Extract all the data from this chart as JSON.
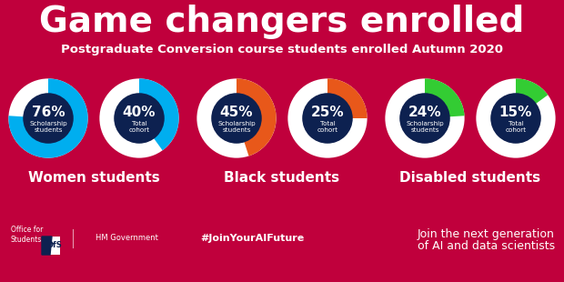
{
  "background_color": "#C0003C",
  "title": "Game changers enrolled",
  "subtitle": "Postgraduate Conversion course students enrolled Autumn 2020",
  "title_color": "#FFFFFF",
  "subtitle_color": "#FFFFFF",
  "donut_center_color": "#0D2150",
  "categories": [
    {
      "label": "Women students",
      "scholarship_pct": 76,
      "total_pct": 40,
      "color": "#00AEEF"
    },
    {
      "label": "Black students",
      "scholarship_pct": 45,
      "total_pct": 25,
      "color": "#E8581A"
    },
    {
      "label": "Disabled students",
      "scholarship_pct": 24,
      "total_pct": 15,
      "color": "#33CC33"
    }
  ],
  "label_scholarship": "Scholarship\nstudents",
  "label_total": "Total\ncohort",
  "footer_hashtag": "#JoinYourAIFuture",
  "footer_right_line1": "Join the next generation",
  "footer_right_line2": "of AI and data scientists"
}
